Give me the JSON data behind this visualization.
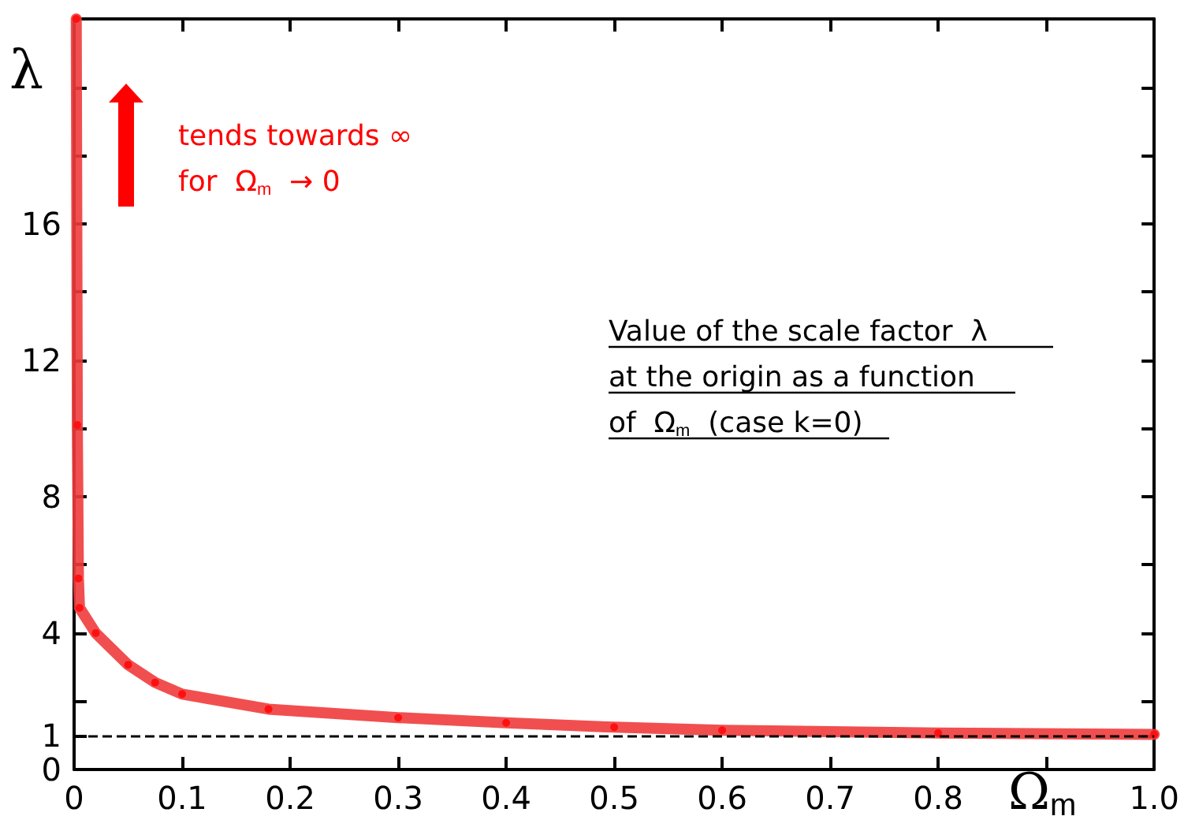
{
  "chart_data": {
    "type": "line",
    "xlabel": "Ω$_{m}$",
    "ylabel": "λ",
    "xlim": [
      0,
      1.0
    ],
    "xticks": [
      0,
      0.1,
      0.2,
      0.3,
      0.4,
      0.5,
      0.6,
      0.7,
      0.8,
      {
        "value": 0.9,
        "label": null
      },
      {
        "value": 1.0,
        "label": "1.0"
      }
    ],
    "ylim": [
      0,
      22
    ],
    "yticks": [
      0,
      1,
      {
        "value": 2,
        "label": null
      },
      4,
      {
        "value": 6,
        "label": null
      },
      8,
      {
        "value": 10,
        "label": null
      },
      12,
      {
        "value": 14,
        "label": null
      },
      16,
      {
        "value": 18,
        "label": null
      },
      {
        "value": 20,
        "label": null
      }
    ],
    "series": [
      {
        "color": "#f03c3c",
        "x": [
          0.002,
          0.003,
          0.004,
          0.005,
          0.02,
          0.05,
          0.075,
          0.1,
          0.18,
          0.3,
          0.4,
          0.5,
          0.6,
          0.8,
          1.0
        ],
        "values": [
          22,
          10.1,
          5.6,
          4.74,
          4.0,
          3.07,
          2.55,
          2.21,
          1.77,
          1.52,
          1.37,
          1.24,
          1.15,
          1.07,
          1.03
        ]
      }
    ],
    "marker": "circle",
    "line_style": "solid",
    "ref_lines": [
      {
        "axis": "y",
        "value": 1,
        "color": "#000000",
        "line_style": "dashed"
      }
    ],
    "annotations": [
      "tends towards ∞\nfor  Ω$_{m}$  → 0",
      "Value of the scale factor  λ\nat the origin as a function\nof  Ω$_{m}$  (case k=0)"
    ]
  }
}
